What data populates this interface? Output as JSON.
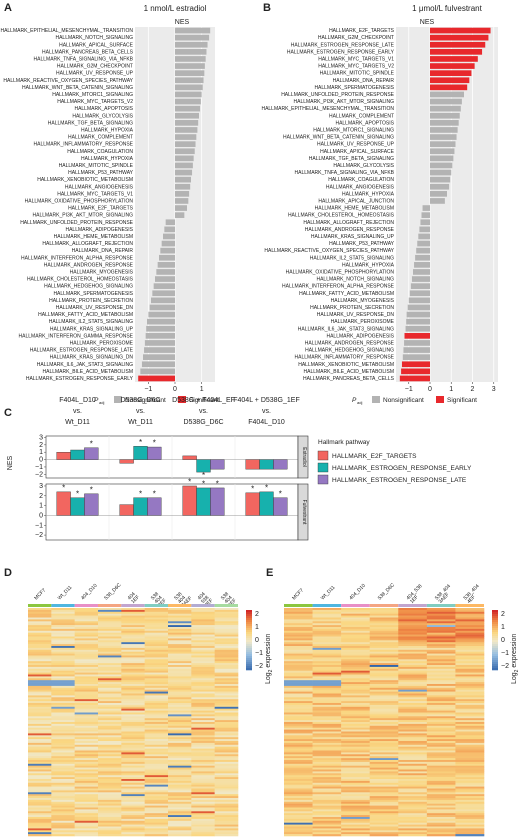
{
  "panels": {
    "A": {
      "letter": "A",
      "title": "1 nmol/L estradiol",
      "nes_label": "NES"
    },
    "B": {
      "letter": "B",
      "title": "1 μmol/L fulvestrant",
      "nes_label": "NES"
    },
    "C": {
      "letter": "C"
    },
    "D": {
      "letter": "D"
    },
    "E": {
      "letter": "E"
    }
  },
  "legend_ab": {
    "padj_label": "P",
    "padj_sub": "adj",
    "nonsig_label": "Nonsignificant",
    "sig_label": "Significant",
    "nonsig_color": "#b3b3b3",
    "sig_color": "#e8282c"
  },
  "colors": {
    "pathway1": "#f26660",
    "pathway2": "#17b1ad",
    "pathway3": "#9578c2",
    "strip": "#d9d9d9"
  },
  "chart_data": [
    {
      "id": "A",
      "type": "bar",
      "orientation": "horizontal",
      "title": "1 nmol/L estradiol",
      "xlabel": "NES",
      "xlim": [
        -1.5,
        1.5
      ],
      "xticks": [
        -1,
        0,
        1
      ],
      "categories": [
        "HALLMARK_EPITHELIAL_MESENCHYMAL_TRANSITION",
        "HALLMARK_NOTCH_SIGNALING",
        "HALLMARK_APICAL_SURFACE",
        "HALLMARK_PANCREAS_BETA_CELLS",
        "HALLMARK_TNFA_SIGNALING_VIA_NFKB",
        "HALLMARK_G2M_CHECKPOINT",
        "HALLMARK_UV_RESPONSE_UP",
        "HALLMARK_REACTIVE_OXYGEN_SPECIES_PATHWAY",
        "HALLMARK_WNT_BETA_CATENIN_SIGNALING",
        "HALLMARK_MTORC1_SIGNALING",
        "HALLMARK_MYC_TARGETS_V2",
        "HALLMARK_APOPTOSIS",
        "HALLMARK_GLYCOLYSIS",
        "HALLMARK_TGF_BETA_SIGNALING",
        "HALLMARK_HYPOXIA",
        "HALLMARK_COMPLEMENT",
        "HALLMARK_INFLAMMATORY_RESPONSE",
        "HALLMARK_COAGULATION",
        "HALLMARK_HYPOXIA",
        "HALLMARK_MITOTIC_SPINDLE",
        "HALLMARK_P53_PATHWAY",
        "HALLMARK_XENOBIOTIC_METABOLISM",
        "HALLMARK_ANGIOGENESIS",
        "HALLMARK_MYC_TARGETS_V1",
        "HALLMARK_OXIDATIVE_PHOSPHORYLATION",
        "HALLMARK_E2F_TARGETS",
        "HALLMARK_PI3K_AKT_MTOR_SIGNALING",
        "HALLMARK_UNFOLDED_PROTEIN_RESPONSE",
        "HALLMARK_ADIPOGENESIS",
        "HALLMARK_HEME_METABOLISM",
        "HALLMARK_ALLOGRAFT_REJECTION",
        "HALLMARK_DNA_REPAIR",
        "HALLMARK_INTERFERON_ALPHA_RESPONSE",
        "HALLMARK_ANDROGEN_RESPONSE",
        "HALLMARK_MYOGENESIS",
        "HALLMARK_CHOLESTEROL_HOMEOSTASIS",
        "HALLMARK_HEDGEHOG_SIGNALING",
        "HALLMARK_SPERMATOGENESIS",
        "HALLMARK_PROTEIN_SECRETION",
        "HALLMARK_UV_RESPONSE_DN",
        "HALLMARK_FATTY_ACID_METABOLISM",
        "HALLMARK_IL2_STAT5_SIGNALING",
        "HALLMARK_KRAS_SIGNALING_UP",
        "HALLMARK_INTERFERON_GAMMA_RESPONSE",
        "HALLMARK_PEROXISOME",
        "HALLMARK_ESTROGEN_RESPONSE_LATE",
        "HALLMARK_KRAS_SIGNALING_DN",
        "HALLMARK_IL6_JAK_STAT3_SIGNALING",
        "HALLMARK_BILE_ACID_METABOLISM",
        "HALLMARK_ESTROGEN_RESPONSE_EARLY"
      ],
      "values": [
        1.32,
        1.28,
        1.22,
        1.18,
        1.15,
        1.12,
        1.1,
        1.07,
        1.04,
        1.0,
        0.97,
        0.94,
        0.9,
        0.87,
        0.84,
        0.8,
        0.77,
        0.74,
        0.7,
        0.67,
        0.64,
        0.6,
        0.57,
        0.53,
        0.5,
        0.45,
        0.35,
        -0.35,
        -0.4,
        -0.45,
        -0.5,
        -0.55,
        -0.6,
        -0.65,
        -0.7,
        -0.75,
        -0.8,
        -0.85,
        -0.9,
        -0.95,
        -1.0,
        -1.05,
        -1.08,
        -1.1,
        -1.13,
        -1.16,
        -1.2,
        -1.24,
        -1.3,
        -1.38
      ],
      "significant": [
        false,
        false,
        false,
        false,
        false,
        false,
        false,
        false,
        false,
        false,
        false,
        false,
        false,
        false,
        false,
        false,
        false,
        false,
        false,
        false,
        false,
        false,
        false,
        false,
        false,
        false,
        false,
        false,
        false,
        false,
        false,
        false,
        false,
        false,
        false,
        false,
        false,
        false,
        false,
        false,
        false,
        false,
        false,
        false,
        false,
        false,
        false,
        false,
        false,
        true
      ]
    },
    {
      "id": "B",
      "type": "bar",
      "orientation": "horizontal",
      "title": "1 μmol/L fulvestrant",
      "xlabel": "NES",
      "xlim": [
        -1.6,
        3.2
      ],
      "xticks": [
        -1,
        0,
        1,
        2,
        3
      ],
      "categories": [
        "HALLMARK_E2F_TARGETS",
        "HALLMARK_G2M_CHECKPOINT",
        "HALLMARK_ESTROGEN_RESPONSE_LATE",
        "HALLMARK_ESTROGEN_RESPONSE_EARLY",
        "HALLMARK_MYC_TARGETS_V1",
        "HALLMARK_MYC_TARGETS_V2",
        "HALLMARK_MITOTIC_SPINDLE",
        "HALLMARK_DNA_REPAIR",
        "HALLMARK_SPERMATOGENESIS",
        "HALLMARK_UNFOLDED_PROTEIN_RESPONSE",
        "HALLMARK_PI3K_AKT_MTOR_SIGNALING",
        "HALLMARK_EPITHELIAL_MESENCHYMAL_TRANSITION",
        "HALLMARK_COMPLEMENT",
        "HALLMARK_APOPTOSIS",
        "HALLMARK_MTORC1_SIGNALING",
        "HALLMARK_WNT_BETA_CATENIN_SIGNALING",
        "HALLMARK_UV_RESPONSE_UP",
        "HALLMARK_APICAL_SURFACE",
        "HALLMARK_TGF_BETA_SIGNALING",
        "HALLMARK_GLYCOLYSIS",
        "HALLMARK_TNFA_SIGNALING_VIA_NFKB",
        "HALLMARK_COAGULATION",
        "HALLMARK_ANGIOGENESIS",
        "HALLMARK_HYPOXIA",
        "HALLMARK_APICAL_JUNCTION",
        "HALLMARK_HEME_METABOLISM",
        "HALLMARK_CHOLESTEROL_HOMEOSTASIS",
        "HALLMARK_ALLOGRAFT_REJECTION",
        "HALLMARK_ANDROGEN_RESPONSE",
        "HALLMARK_KRAS_SIGNALING_UP",
        "HALLMARK_P53_PATHWAY",
        "HALLMARK_REACTIVE_OXYGEN_SPECIES_PATHWAY",
        "HALLMARK_IL2_STAT5_SIGNALING",
        "HALLMARK_HYPOXIA",
        "HALLMARK_OXIDATIVE_PHOSPHORYLATION",
        "HALLMARK_NOTCH_SIGNALING",
        "HALLMARK_INTERFERON_ALPHA_RESPONSE",
        "HALLMARK_FATTY_ACID_METABOLISM",
        "HALLMARK_MYOGENESIS",
        "HALLMARK_PROTEIN_SECRETION",
        "HALLMARK_UV_RESPONSE_DN",
        "HALLMARK_PEROXISOME",
        "HALLMARK_IL6_JAK_STAT3_SIGNALING",
        "HALLMARK_ADIPOGENESIS",
        "HALLMARK_ANDROGEN_RESPONSE",
        "HALLMARK_HEDGEHOG_SIGNALING",
        "HALLMARK_INFLAMMATORY_RESPONSE",
        "HALLMARK_XENOBIOTIC_METABOLISM",
        "HALLMARK_BILE_ACID_METABOLISM",
        "HALLMARK_PANCREAS_BETA_CELLS"
      ],
      "values": [
        2.85,
        2.75,
        2.6,
        2.45,
        2.25,
        2.1,
        1.95,
        1.85,
        1.75,
        1.6,
        1.5,
        1.45,
        1.4,
        1.35,
        1.3,
        1.25,
        1.2,
        1.15,
        1.1,
        1.05,
        1.0,
        0.95,
        0.9,
        0.8,
        0.7,
        -0.35,
        -0.4,
        -0.45,
        -0.5,
        -0.55,
        -0.6,
        -0.65,
        -0.7,
        -0.75,
        -0.8,
        -0.85,
        -0.9,
        -0.95,
        -1.0,
        -1.05,
        -1.1,
        -1.12,
        -1.15,
        -1.2,
        -1.22,
        -1.25,
        -1.28,
        -1.32,
        -1.36,
        -1.42
      ],
      "significant": [
        true,
        true,
        true,
        true,
        true,
        true,
        true,
        true,
        true,
        false,
        false,
        false,
        false,
        false,
        false,
        false,
        false,
        false,
        false,
        false,
        false,
        false,
        false,
        false,
        false,
        false,
        false,
        false,
        false,
        false,
        false,
        false,
        false,
        false,
        false,
        false,
        false,
        false,
        false,
        false,
        false,
        false,
        false,
        true,
        false,
        false,
        false,
        true,
        true,
        true
      ]
    },
    {
      "id": "C",
      "type": "bar",
      "ylabel": "NES",
      "legend_title": "Hallmark pathway",
      "comparisons": [
        "F404L_D10\nvs.\nWt_D11",
        "D538G_D6C\nvs.\nWt_D11",
        "D538G + F404L_EF\nvs.\nD538G_D6C",
        "F404L + D538G_1EF\nvs.\nF404L_D10"
      ],
      "facets": [
        "Estradiol",
        "Fulvestrant"
      ],
      "series": [
        {
          "name": "HALLMARK_E2F_TARGETS",
          "color": "#f26660",
          "values": {
            "Estradiol": [
              1.0,
              -0.5,
              0.5,
              -1.3
            ],
            "Fulvestrant": [
              2.4,
              1.1,
              3.0,
              2.3
            ]
          },
          "significant": {
            "Estradiol": [
              false,
              false,
              false,
              false
            ],
            "Fulvestrant": [
              true,
              false,
              true,
              true
            ]
          }
        },
        {
          "name": "HALLMARK_ESTROGEN_RESPONSE_EARLY",
          "color": "#17b1ad",
          "values": {
            "Estradiol": [
              1.3,
              1.8,
              -1.7,
              -1.3
            ],
            "Fulvestrant": [
              1.8,
              1.8,
              2.8,
              2.4
            ]
          },
          "significant": {
            "Estradiol": [
              false,
              true,
              true,
              false
            ],
            "Fulvestrant": [
              true,
              true,
              true,
              true
            ]
          }
        },
        {
          "name": "HALLMARK_ESTROGEN_RESPONSE_LATE",
          "color": "#9578c2",
          "values": {
            "Estradiol": [
              1.6,
              1.7,
              -1.3,
              -1.3
            ],
            "Fulvestrant": [
              2.2,
              1.8,
              2.8,
              1.8
            ]
          },
          "significant": {
            "Estradiol": [
              true,
              true,
              false,
              false
            ],
            "Fulvestrant": [
              true,
              true,
              true,
              true
            ]
          }
        }
      ],
      "ylim": [
        -2.5,
        3.2
      ],
      "yticks": [
        -2,
        -1,
        0,
        1,
        2,
        3
      ]
    },
    {
      "id": "D",
      "type": "heatmap",
      "columns": [
        "MCF7",
        "Wt_D11",
        "404_D10",
        "538_D6C",
        "404_1EF",
        "538_404_2EF",
        "538_404_3AEF",
        "404_538_3EF",
        "538_404_4EF"
      ],
      "colorbar_label": "Log2 expression",
      "colorbar_ticks": [
        2,
        1,
        0,
        -1,
        -2
      ],
      "value_range": [
        -3,
        2.5
      ]
    },
    {
      "id": "E",
      "type": "heatmap",
      "columns": [
        "MCF7",
        "Wt_D11",
        "404_D10",
        "538_D6C",
        "404_538_1EF",
        "538_404_3AEF",
        "538_404_4EF"
      ],
      "colorbar_label": "Log2 expression",
      "colorbar_ticks": [
        2,
        1,
        0,
        -1,
        -2
      ],
      "value_range": [
        -3,
        2.5
      ]
    }
  ],
  "heatmap_labels": {
    "D": [
      "MCF7",
      "Wt_D11",
      "404_D10",
      "538_D6C",
      "404\n1EF",
      "538\n404\n2EF",
      "538\n404\n3AEF",
      "404\n538\n3EF",
      "538\n404\n4EF"
    ],
    "E": [
      "MCF7",
      "Wt_D11",
      "404_D10",
      "538_D6C",
      "404_538\n1EF",
      "538_404\n3AEF",
      "538_404\n4EF"
    ]
  },
  "colorbar": {
    "label_main": "Log",
    "label_sub": "2",
    "label_rest": " expression",
    "ticks": [
      "2",
      "1",
      "0",
      "−1",
      "−2"
    ]
  }
}
